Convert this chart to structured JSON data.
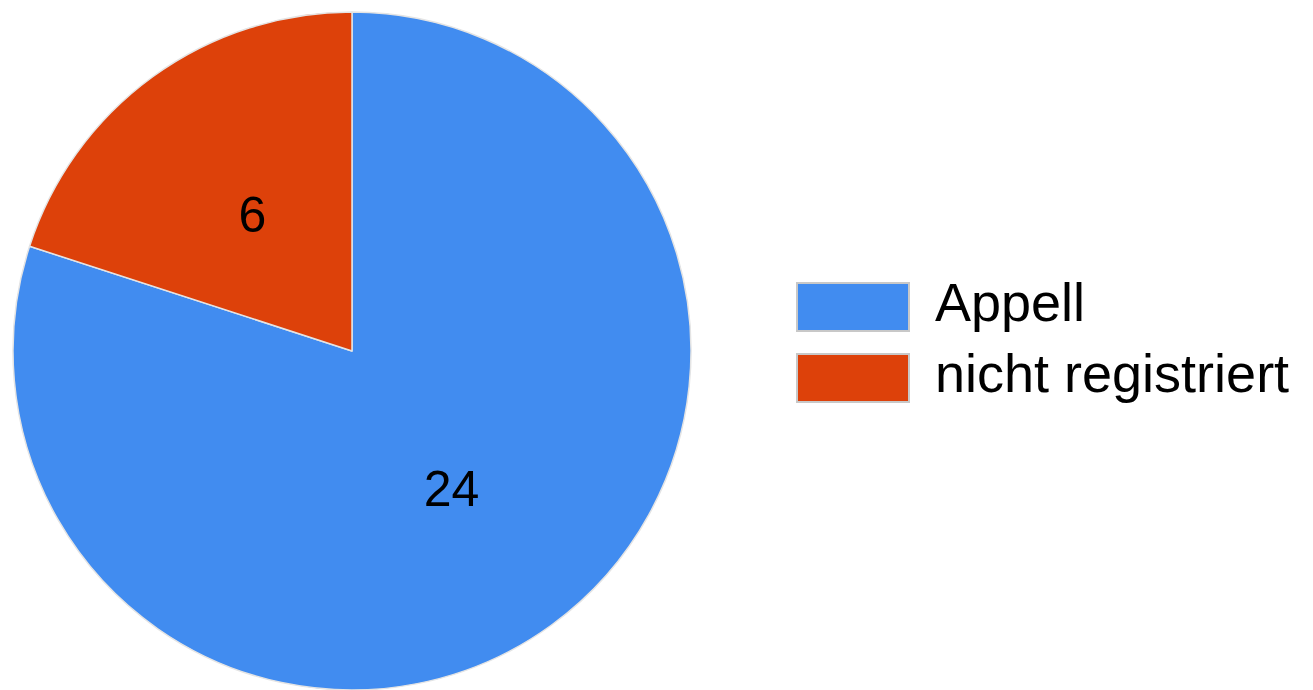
{
  "chart_data": {
    "type": "pie",
    "categories": [
      "Appell",
      "nicht registriert"
    ],
    "values": [
      24,
      6
    ],
    "colors": [
      "#418cf0",
      "#dd410a"
    ],
    "data_labels": true,
    "legend": "right"
  }
}
